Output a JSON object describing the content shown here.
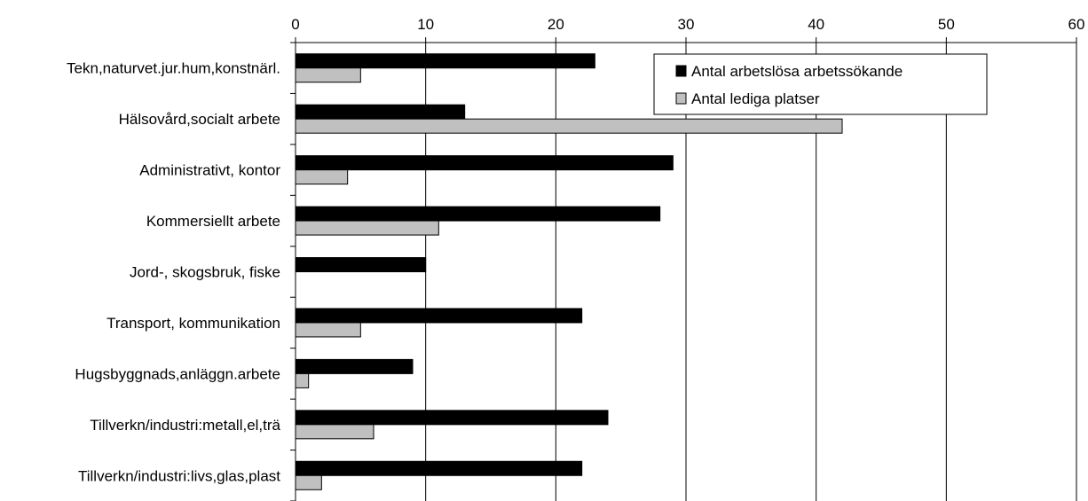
{
  "chart_data": {
    "type": "bar",
    "orientation": "horizontal",
    "categories": [
      "Tekn,naturvet.jur.hum,konstnärl.",
      "Hälsovård,socialt arbete",
      "Administrativt, kontor",
      "Kommersiellt arbete",
      "Jord-, skogsbruk, fiske",
      "Transport, kommunikation",
      "Hugsbyggnads,anläggn.arbete",
      "Tillverkn/industri:metall,el,trä",
      "Tillverkn/industri:livs,glas,plast"
    ],
    "series": [
      {
        "name": "Antal arbetslösa arbetssökande",
        "color": "#000000",
        "values": [
          23,
          13,
          29,
          28,
          10,
          22,
          9,
          24,
          22
        ]
      },
      {
        "name": "Antal lediga platser",
        "color": "#c0c0c0",
        "values": [
          5,
          42,
          4,
          11,
          0,
          5,
          1,
          6,
          2
        ]
      }
    ],
    "xlim": [
      0,
      60
    ],
    "xticks": [
      "0",
      "10",
      "20",
      "30",
      "40",
      "50",
      "60"
    ],
    "x_axis_position": "top",
    "grid": "vertical",
    "legend_position": "top-right"
  }
}
